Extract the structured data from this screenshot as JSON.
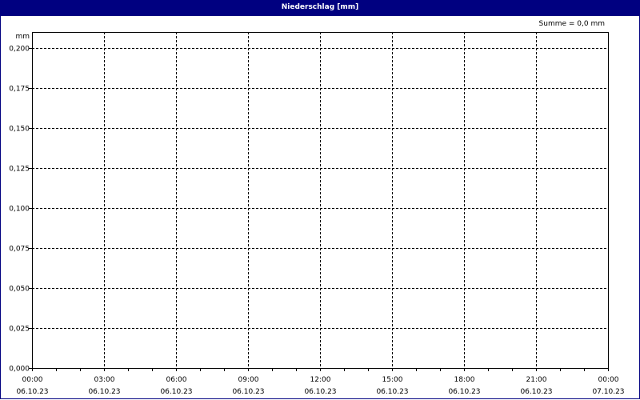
{
  "window": {
    "title": "Niederschlag [mm]",
    "border_color": "#000080"
  },
  "summary": "Summe = 0,0 mm",
  "chart_data": {
    "type": "bar",
    "title": "Niederschlag [mm]",
    "ylabel": "mm",
    "xlabel": "",
    "ylim": [
      0,
      0.21
    ],
    "xlim": [
      "06.10.23 00:00",
      "07.10.23 00:00"
    ],
    "grid": true,
    "y_ticks": [
      "0,000",
      "0,025",
      "0,050",
      "0,075",
      "0,100",
      "0,125",
      "0,150",
      "0,175",
      "0,200"
    ],
    "y_tick_values": [
      0,
      0.025,
      0.05,
      0.075,
      0.1,
      0.125,
      0.15,
      0.175,
      0.2
    ],
    "x_ticks": [
      {
        "time": "00:00",
        "date": "06.10.23"
      },
      {
        "time": "03:00",
        "date": "06.10.23"
      },
      {
        "time": "06:00",
        "date": "06.10.23"
      },
      {
        "time": "09:00",
        "date": "06.10.23"
      },
      {
        "time": "12:00",
        "date": "06.10.23"
      },
      {
        "time": "15:00",
        "date": "06.10.23"
      },
      {
        "time": "18:00",
        "date": "06.10.23"
      },
      {
        "time": "21:00",
        "date": "06.10.23"
      },
      {
        "time": "00:00",
        "date": "07.10.23"
      }
    ],
    "x_tick_hours": [
      0,
      3,
      6,
      9,
      12,
      15,
      18,
      21,
      24
    ],
    "values": []
  }
}
